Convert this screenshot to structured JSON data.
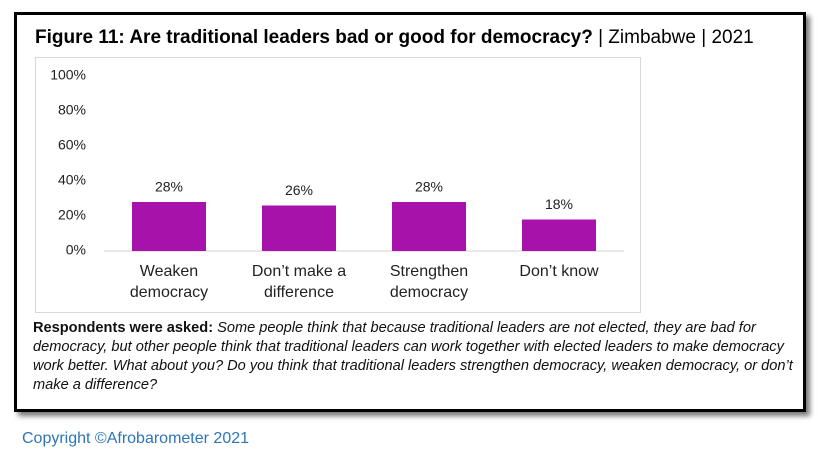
{
  "chart_data": {
    "type": "bar",
    "title": "Figure 11: Are traditional leaders bad or good for democracy?",
    "subtitle": "| Zimbabwe | 2021",
    "categories": [
      "Weaken democracy",
      "Don’t make a difference",
      "Strengthen democracy",
      "Don’t know"
    ],
    "values": [
      28,
      26,
      28,
      18
    ],
    "value_labels": [
      "28%",
      "26%",
      "28%",
      "18%"
    ],
    "color": "#a612aa",
    "ylim": [
      0,
      100
    ],
    "yticks": [
      {
        "value": 0,
        "label": "0%"
      },
      {
        "value": 20,
        "label": "20%"
      },
      {
        "value": 40,
        "label": "40%"
      },
      {
        "value": 60,
        "label": "60%"
      },
      {
        "value": 80,
        "label": "80%"
      },
      {
        "value": 100,
        "label": "100%"
      }
    ],
    "grid": false,
    "note": {
      "label": "Respondents were asked:",
      "text": "Some people think that because traditional leaders are not elected, they are bad for democracy, but other people think that traditional leaders can work together with elected leaders to make democracy work better. What about you? Do you think that traditional leaders strengthen democracy, weaken democracy, or don’t make a difference?"
    }
  },
  "footer": "Copyright ©Afrobarometer 2021"
}
